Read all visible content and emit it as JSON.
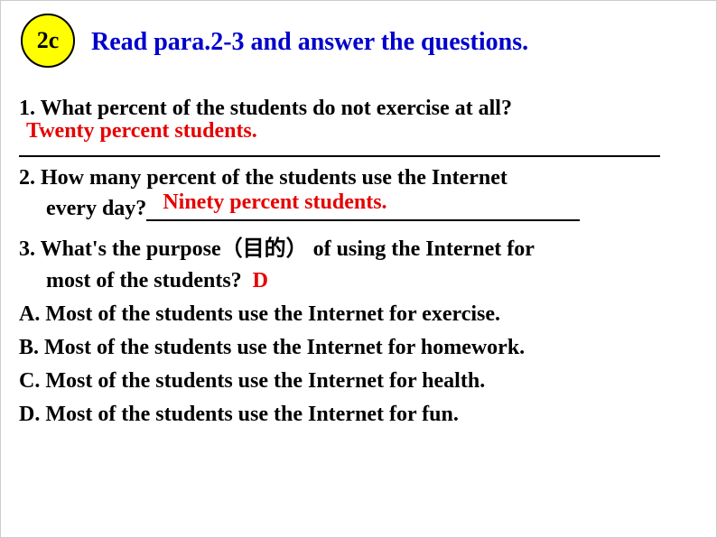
{
  "badge": "2c",
  "title": "Read para.2-3 and answer the questions.",
  "q1": {
    "text": "1. What percent of the students do not exercise at all?",
    "answer": "Twenty percent students."
  },
  "q2": {
    "line1": "2. How many percent of the students use the Internet",
    "line2_prefix": "every day?",
    "answer": "Ninety percent students."
  },
  "q3": {
    "line1": "3. What's the purpose（目的） of using the Internet for",
    "line2_prefix": "most of  the students?",
    "answer": "D",
    "options": {
      "A": "A. Most of the students use the Internet for exercise.",
      "B": "B. Most of the students use the Internet for homework.",
      "C": "C. Most of the students use the Internet for health.",
      "D": "D. Most of the students use the Internet for fun."
    }
  },
  "colors": {
    "badge_bg": "#ffff00",
    "badge_border": "#000000",
    "title": "#0000cc",
    "body_text": "#000000",
    "answer": "#e60000",
    "background": "#ffffff"
  },
  "fonts": {
    "title_size": 28,
    "body_size": 24,
    "badge_size": 26,
    "family": "Times New Roman"
  }
}
